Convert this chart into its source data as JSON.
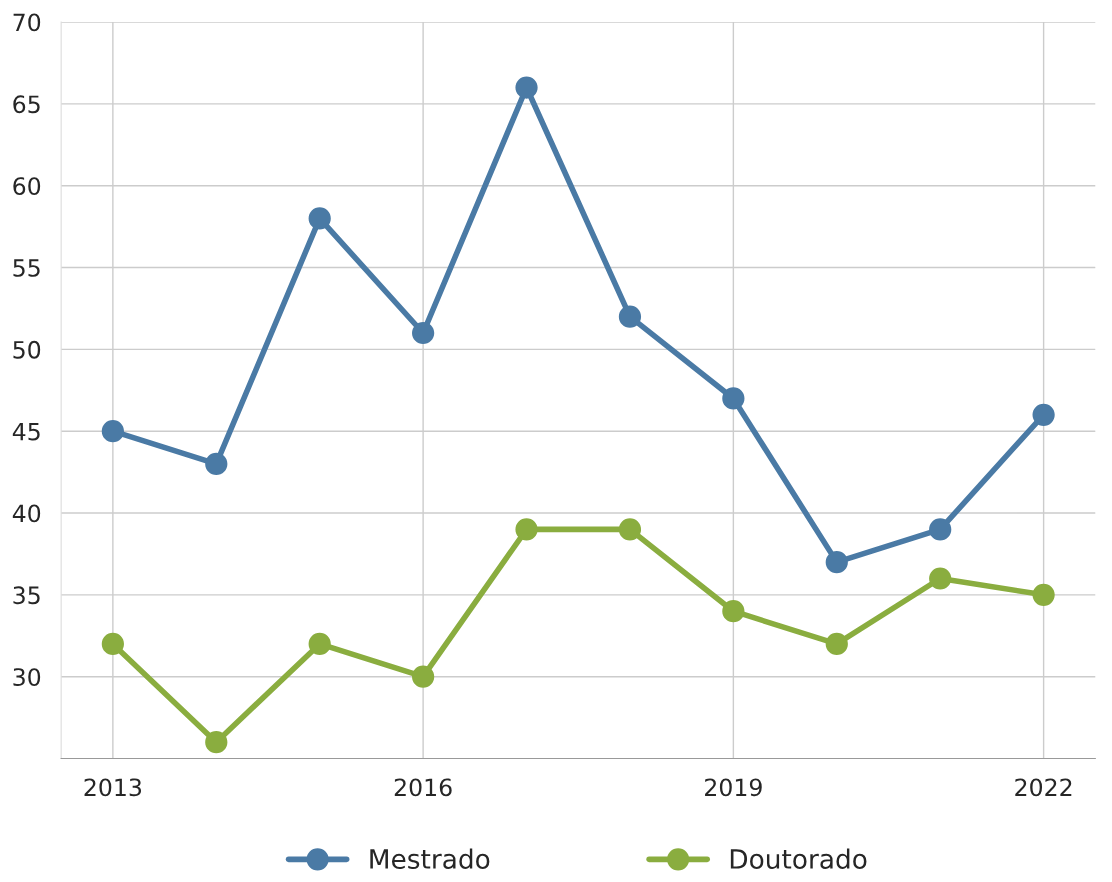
{
  "chart_data": {
    "type": "line",
    "x": [
      2013,
      2014,
      2015,
      2016,
      2017,
      2018,
      2019,
      2020,
      2021,
      2022
    ],
    "series": [
      {
        "name": "Mestrado",
        "color": "#4a7aa5",
        "values": [
          45,
          43,
          58,
          51,
          66,
          52,
          47,
          37,
          39,
          46
        ]
      },
      {
        "name": "Doutorado",
        "color": "#8aad3f",
        "values": [
          32,
          26,
          32,
          30,
          39,
          39,
          34,
          32,
          36,
          35
        ]
      }
    ],
    "xlim": [
      2012.5,
      2022.5
    ],
    "xticks": [
      2013,
      2016,
      2019,
      2022
    ],
    "ylim": [
      25,
      70
    ],
    "yticks": [
      30,
      35,
      40,
      45,
      50,
      55,
      60,
      65,
      70
    ],
    "grid": true,
    "legend": "bottom",
    "marker": "circle",
    "line_style": "solid"
  }
}
